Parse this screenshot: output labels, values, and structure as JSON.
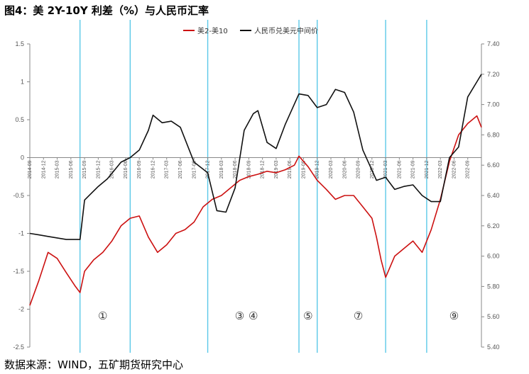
{
  "header": {
    "title": "图4：美 2Y-10Y 利差（%）与人民币汇率"
  },
  "footer": {
    "source": "数据来源：WIND，五矿期货研究中心"
  },
  "chart_data": {
    "type": "line",
    "title": "图4：美 2Y-10Y 利差（%）与人民币汇率",
    "legend_position": "top-center",
    "grid": false,
    "colors": {
      "spread": "#cc1111",
      "fx": "#111111",
      "event_lines": "#5bc8e8"
    },
    "y_left": {
      "ylim": [
        -2.5,
        1.5
      ],
      "ticks": [
        "1.5",
        "1",
        "0.5",
        "0",
        "-0.5",
        "-1",
        "-1.5",
        "-2",
        "-2.5"
      ]
    },
    "y_right": {
      "ylim": [
        5.4,
        7.4
      ],
      "ticks": [
        "7.40",
        "7.20",
        "7.00",
        "6.80",
        "6.60",
        "6.40",
        "6.20",
        "6.00",
        "5.80",
        "5.60",
        "5.40"
      ]
    },
    "x_ticks": [
      "2014-09",
      "2014-12",
      "2015-03",
      "2015-06",
      "2015-09",
      "2015-12",
      "2016-03",
      "2016-06",
      "2016-09",
      "2016-12",
      "2017-03",
      "2017-06",
      "2017-09",
      "2017-12",
      "2018-03",
      "2018-06",
      "2018-09",
      "2018-12",
      "2019-03",
      "2019-06",
      "2019-09",
      "2019-12",
      "2020-03",
      "2020-06",
      "2020-09",
      "2020-12",
      "2021-03",
      "2021-06",
      "2021-09",
      "2021-12",
      "2022-03",
      "2022-06",
      "2022-09"
    ],
    "x_range": [
      "2014-09",
      "2022-12"
    ],
    "series": [
      {
        "name": "美2-美10",
        "axis": "left",
        "x": [
          "2014-09",
          "2014-11",
          "2015-01",
          "2015-03",
          "2015-05",
          "2015-07",
          "2015-08",
          "2015-09",
          "2015-11",
          "2016-01",
          "2016-03",
          "2016-05",
          "2016-07",
          "2016-09",
          "2016-11",
          "2017-01",
          "2017-03",
          "2017-05",
          "2017-07",
          "2017-09",
          "2017-11",
          "2018-01",
          "2018-03",
          "2018-05",
          "2018-07",
          "2018-09",
          "2018-11",
          "2019-01",
          "2019-03",
          "2019-05",
          "2019-07",
          "2019-08",
          "2019-10",
          "2019-12",
          "2020-02",
          "2020-04",
          "2020-06",
          "2020-08",
          "2020-10",
          "2020-12",
          "2021-01",
          "2021-02",
          "2021-03",
          "2021-05",
          "2021-07",
          "2021-09",
          "2021-11",
          "2022-01",
          "2022-03",
          "2022-05",
          "2022-07",
          "2022-09",
          "2022-11",
          "2022-12"
        ],
        "values": [
          -1.95,
          -1.62,
          -1.25,
          -1.33,
          -1.52,
          -1.7,
          -1.78,
          -1.5,
          -1.35,
          -1.25,
          -1.1,
          -0.9,
          -0.8,
          -0.77,
          -1.05,
          -1.25,
          -1.15,
          -1.0,
          -0.95,
          -0.85,
          -0.65,
          -0.55,
          -0.5,
          -0.4,
          -0.3,
          -0.25,
          -0.22,
          -0.18,
          -0.2,
          -0.16,
          -0.1,
          0.02,
          -0.12,
          -0.3,
          -0.42,
          -0.55,
          -0.5,
          -0.5,
          -0.65,
          -0.8,
          -1.05,
          -1.35,
          -1.58,
          -1.3,
          -1.2,
          -1.1,
          -1.25,
          -0.95,
          -0.55,
          -0.05,
          0.3,
          0.45,
          0.55,
          0.4
        ]
      },
      {
        "name": "人民币兑美元中间价",
        "axis": "right",
        "x": [
          "2014-09",
          "2014-11",
          "2015-01",
          "2015-03",
          "2015-05",
          "2015-07",
          "2015-08",
          "2015-09",
          "2015-12",
          "2016-02",
          "2016-05",
          "2016-07",
          "2016-09",
          "2016-11",
          "2016-12",
          "2017-02",
          "2017-04",
          "2017-06",
          "2017-09",
          "2017-12",
          "2018-02",
          "2018-04",
          "2018-06",
          "2018-08",
          "2018-10",
          "2018-11",
          "2019-01",
          "2019-03",
          "2019-05",
          "2019-08",
          "2019-10",
          "2019-12",
          "2020-02",
          "2020-04",
          "2020-06",
          "2020-08",
          "2020-10",
          "2021-01",
          "2021-03",
          "2021-05",
          "2021-07",
          "2021-09",
          "2021-11",
          "2022-01",
          "2022-03",
          "2022-05",
          "2022-07",
          "2022-09",
          "2022-11",
          "2022-12"
        ],
        "values": [
          6.15,
          6.14,
          6.13,
          6.12,
          6.11,
          6.11,
          6.11,
          6.37,
          6.46,
          6.51,
          6.62,
          6.65,
          6.7,
          6.83,
          6.93,
          6.88,
          6.89,
          6.85,
          6.62,
          6.55,
          6.3,
          6.29,
          6.45,
          6.83,
          6.94,
          6.96,
          6.75,
          6.71,
          6.87,
          7.07,
          7.06,
          6.98,
          7.0,
          7.1,
          7.08,
          6.95,
          6.7,
          6.5,
          6.52,
          6.44,
          6.46,
          6.47,
          6.4,
          6.36,
          6.36,
          6.65,
          6.72,
          7.05,
          7.15,
          7.2
        ]
      }
    ],
    "event_lines": [
      "2015-08",
      "2016-07",
      "2017-12",
      "2019-08",
      "2019-12",
      "2021-03",
      "2021-12"
    ],
    "annotations": [
      {
        "label": "①",
        "x": "2016-01"
      },
      {
        "label": "③",
        "x": "2018-07"
      },
      {
        "label": "④",
        "x": "2018-10"
      },
      {
        "label": "⑤",
        "x": "2019-10"
      },
      {
        "label": "⑦",
        "x": "2020-09"
      },
      {
        "label": "⑨",
        "x": "2022-06"
      }
    ]
  }
}
